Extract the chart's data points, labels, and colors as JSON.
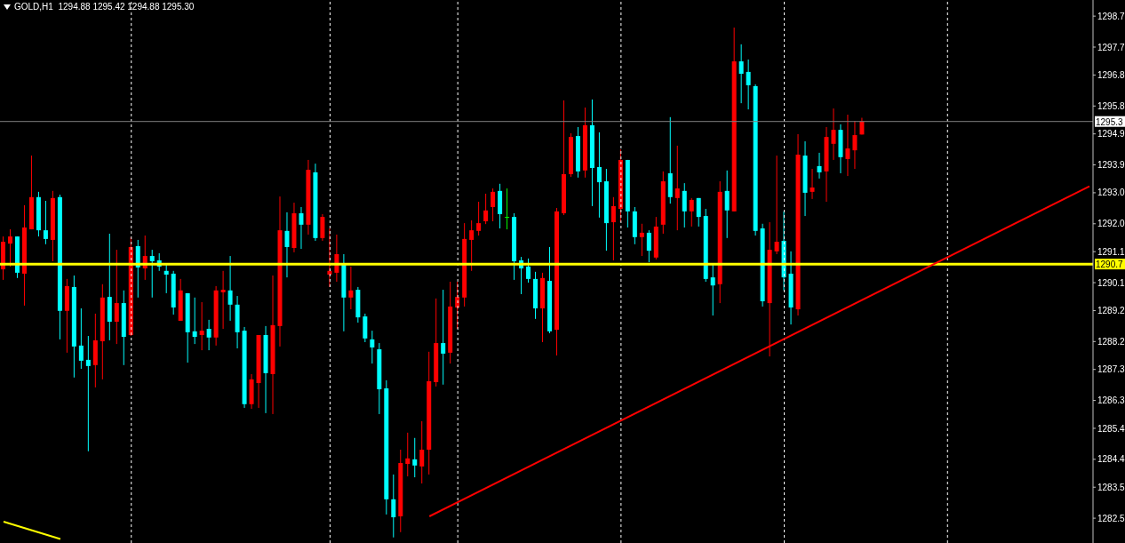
{
  "chart_data": {
    "type": "candlestick",
    "title": "GOLD,H1  1294.88 1295.42 1294.88 1295.30",
    "categories": [
      null,
      null,
      null,
      null,
      null,
      null,
      null,
      null,
      null,
      null,
      null,
      null,
      null,
      null,
      null,
      null,
      null,
      null,
      null,
      null,
      null,
      null,
      null,
      null,
      null,
      null,
      null,
      null,
      null,
      null,
      null,
      null,
      null,
      null,
      null,
      null,
      null,
      null,
      null,
      null,
      null,
      null,
      null,
      null,
      null,
      null,
      null,
      null,
      null,
      null,
      null,
      null,
      null,
      null,
      null,
      null,
      null,
      null,
      null,
      null,
      null,
      null,
      null,
      null,
      null,
      null,
      null,
      null,
      null,
      null,
      null,
      null,
      null,
      null,
      null,
      null,
      null,
      null,
      null,
      null,
      null,
      null,
      null,
      null,
      null,
      null,
      null,
      null,
      null,
      null,
      null,
      null,
      null,
      null,
      null,
      null,
      null,
      null,
      null,
      null,
      null,
      null,
      null,
      null,
      null,
      null,
      null,
      null,
      null,
      null,
      null,
      null,
      null,
      null,
      null,
      null,
      null,
      null,
      null,
      null,
      null,
      null,
      null,
      null,
      null,
      null,
      null,
      null,
      null,
      null,
      null,
      null,
      null,
      null,
      null,
      null,
      null,
      null,
      null,
      null,
      null,
      null,
      null,
      null,
      null,
      null,
      null,
      null,
      null,
      null,
      null,
      null,
      null,
      null
    ],
    "ohlc": [
      [
        1290.53,
        1291.59,
        1290.19,
        1291.42
      ],
      [
        1291.36,
        1291.82,
        1290.62,
        1291.59
      ],
      [
        1291.59,
        1291.59,
        1290.25,
        1290.42
      ],
      [
        1290.39,
        1292.6,
        1289.36,
        1291.88
      ],
      [
        1291.82,
        1294.2,
        1291.82,
        1292.86
      ],
      [
        1292.86,
        1293.03,
        1291.59,
        1291.79
      ],
      [
        1291.79,
        1292.74,
        1291.34,
        1291.51
      ],
      [
        1291.48,
        1293.06,
        1290.79,
        1292.83
      ],
      [
        1292.86,
        1292.94,
        1288.27,
        1289.19
      ],
      [
        1289.19,
        1290.22,
        1287.84,
        1289.99
      ],
      [
        1289.96,
        1290.33,
        1287.04,
        1288.04
      ],
      [
        1288.07,
        1289.27,
        1287.32,
        1287.58
      ],
      [
        1287.61,
        1288.38,
        1284.66,
        1287.41
      ],
      [
        1287.44,
        1289.1,
        1286.72,
        1288.24
      ],
      [
        1288.21,
        1290.05,
        1286.98,
        1289.62
      ],
      [
        1289.64,
        1291.68,
        1288.24,
        1288.84
      ],
      [
        1288.84,
        1291.16,
        1288.12,
        1289.44
      ],
      [
        1289.44,
        1289.85,
        1287.44,
        1288.35
      ],
      [
        1288.41,
        1291.57,
        1288.38,
        1291.25
      ],
      [
        1291.28,
        1291.48,
        1289.62,
        1290.59
      ],
      [
        1290.56,
        1291.62,
        1290.19,
        1290.96
      ],
      [
        1290.96,
        1291.16,
        1289.62,
        1290.79
      ],
      [
        1290.82,
        1291.05,
        1290.48,
        1290.62
      ],
      [
        1290.48,
        1290.7,
        1289.76,
        1290.36
      ],
      [
        1290.39,
        1290.48,
        1289.07,
        1289.3
      ],
      [
        1288.87,
        1290.22,
        1288.87,
        1289.85
      ],
      [
        1289.76,
        1289.76,
        1287.52,
        1288.5
      ],
      [
        1288.53,
        1289.62,
        1288.12,
        1288.35
      ],
      [
        1288.41,
        1289.47,
        1287.92,
        1288.55
      ],
      [
        1288.61,
        1288.9,
        1287.92,
        1288.33
      ],
      [
        1288.33,
        1289.99,
        1288.07,
        1289.85
      ],
      [
        1289.79,
        1290.48,
        1288.61,
        1289.87
      ],
      [
        1289.85,
        1290.96,
        1288.87,
        1289.39
      ],
      [
        1289.39,
        1289.67,
        1287.98,
        1288.5
      ],
      [
        1288.55,
        1288.67,
        1286.06,
        1286.18
      ],
      [
        1286.18,
        1287.15,
        1286.03,
        1286.98
      ],
      [
        1286.86,
        1288.41,
        1286.06,
        1288.41
      ],
      [
        1288.41,
        1288.7,
        1285.89,
        1287.18
      ],
      [
        1287.15,
        1290.33,
        1285.86,
        1288.73
      ],
      [
        1288.7,
        1292.88,
        1288.04,
        1291.79
      ],
      [
        1291.77,
        1292.37,
        1290.27,
        1291.25
      ],
      [
        1291.22,
        1292.68,
        1291.08,
        1292.34
      ],
      [
        1292.34,
        1292.54,
        1291.19,
        1291.97
      ],
      [
        1291.97,
        1294.06,
        1291.65,
        1293.74
      ],
      [
        1293.66,
        1293.94,
        1291.45,
        1291.54
      ],
      [
        1291.54,
        1292.31,
        1291.45,
        1292.22
      ],
      [
        1290.36,
        1291.85,
        1289.96,
        1290.48
      ],
      [
        1290.42,
        1291.65,
        1290.13,
        1291.02
      ],
      [
        1290.7,
        1291.02,
        1288.53,
        1289.62
      ],
      [
        1289.62,
        1290.62,
        1289.24,
        1289.85
      ],
      [
        1289.87,
        1289.96,
        1288.81,
        1288.98
      ],
      [
        1289.01,
        1289.1,
        1288.18,
        1288.3
      ],
      [
        1288.27,
        1288.55,
        1287.49,
        1288.01
      ],
      [
        1287.95,
        1288.15,
        1285.86,
        1286.66
      ],
      [
        1286.69,
        1286.95,
        1282.62,
        1283.11
      ],
      [
        1283.11,
        1283.91,
        1281.88,
        1282.53
      ],
      [
        1282.56,
        1284.71,
        1282.05,
        1284.28
      ],
      [
        1284.25,
        1285.26,
        1283.85,
        1284.43
      ],
      [
        1284.4,
        1285.09,
        1283.82,
        1284.2
      ],
      [
        1284.17,
        1285.63,
        1283.62,
        1284.71
      ],
      [
        1284.71,
        1287.87,
        1283.91,
        1286.92
      ],
      [
        1286.89,
        1289.59,
        1286.75,
        1288.15
      ],
      [
        1288.15,
        1289.87,
        1286.81,
        1287.81
      ],
      [
        1287.84,
        1290.13,
        1287.49,
        1289.33
      ],
      [
        1289.3,
        1290.13,
        1288.61,
        1289.64
      ],
      [
        1289.62,
        1292.02,
        1289.33,
        1291.51
      ],
      [
        1291.48,
        1292.11,
        1290.48,
        1291.79
      ],
      [
        1291.77,
        1292.71,
        1291.62,
        1292.02
      ],
      [
        1292.08,
        1292.97,
        1291.99,
        1292.43
      ],
      [
        1292.54,
        1293.14,
        1292.08,
        1293.03
      ],
      [
        1293.06,
        1293.29,
        1291.85,
        1292.31
      ],
      [
        1292.22,
        1293.14,
        1291.82,
        1292.22
      ],
      [
        1292.22,
        1292.34,
        1290.19,
        1290.79
      ],
      [
        1290.82,
        1290.93,
        1289.73,
        1290.56
      ],
      [
        1290.62,
        1290.88,
        1290.1,
        1290.22
      ],
      [
        1290.22,
        1290.45,
        1288.93,
        1289.27
      ],
      [
        1289.27,
        1290.42,
        1288.18,
        1290.25
      ],
      [
        1290.16,
        1291.25,
        1288.47,
        1288.53
      ],
      [
        1288.58,
        1292.51,
        1287.75,
        1292.4
      ],
      [
        1292.34,
        1295.98,
        1292.28,
        1293.6
      ],
      [
        1293.6,
        1294.92,
        1293.51,
        1294.8
      ],
      [
        1294.83,
        1295.12,
        1293.49,
        1293.69
      ],
      [
        1293.72,
        1295.75,
        1293.49,
        1295.18
      ],
      [
        1295.18,
        1296.01,
        1292.57,
        1293.8
      ],
      [
        1293.83,
        1294.95,
        1292.2,
        1293.34
      ],
      [
        1293.37,
        1293.77,
        1291.13,
        1292.02
      ],
      [
        1292.05,
        1292.86,
        1290.82,
        1292.57
      ],
      [
        1292.48,
        1294.4,
        1292.05,
        1294.06
      ],
      [
        1294.06,
        1294.06,
        1291.88,
        1292.4
      ],
      [
        1292.4,
        1292.54,
        1291.34,
        1291.57
      ],
      [
        1291.57,
        1292.0,
        1290.96,
        1291.71
      ],
      [
        1291.71,
        1291.79,
        1290.76,
        1291.13
      ],
      [
        1290.91,
        1292.22,
        1290.85,
        1291.91
      ],
      [
        1291.97,
        1293.69,
        1291.68,
        1293.37
      ],
      [
        1293.63,
        1295.44,
        1292.65,
        1292.86
      ],
      [
        1292.83,
        1294.52,
        1291.79,
        1293.14
      ],
      [
        1293.06,
        1293.31,
        1291.88,
        1292.4
      ],
      [
        1292.4,
        1292.83,
        1291.91,
        1292.77
      ],
      [
        1292.83,
        1292.83,
        1291.91,
        1292.22
      ],
      [
        1292.25,
        1292.48,
        1290.13,
        1290.22
      ],
      [
        1290.27,
        1290.68,
        1289.04,
        1290.01
      ],
      [
        1290.05,
        1293.37,
        1289.44,
        1293.03
      ],
      [
        1293.06,
        1293.72,
        1291.54,
        1292.43
      ],
      [
        1292.4,
        1298.33,
        1292.4,
        1297.24
      ],
      [
        1297.24,
        1297.79,
        1295.89,
        1296.84
      ],
      [
        1296.9,
        1297.3,
        1295.69,
        1296.47
      ],
      [
        1296.44,
        1296.5,
        1291.62,
        1291.77
      ],
      [
        1291.85,
        1292.0,
        1289.33,
        1289.5
      ],
      [
        1289.44,
        1292.05,
        1287.72,
        1291.16
      ],
      [
        1291.11,
        1294.2,
        1291.02,
        1291.42
      ],
      [
        1291.45,
        1292.4,
        1289.85,
        1290.27
      ],
      [
        1290.39,
        1291.11,
        1288.75,
        1289.3
      ],
      [
        1289.24,
        1294.89,
        1289.04,
        1294.23
      ],
      [
        1294.2,
        1294.66,
        1292.25,
        1293.0
      ],
      [
        1293.03,
        1293.77,
        1292.8,
        1293.17
      ],
      [
        1293.86,
        1294.29,
        1293.46,
        1293.66
      ],
      [
        1293.69,
        1295.12,
        1292.71,
        1294.8
      ],
      [
        1294.58,
        1295.72,
        1294.06,
        1295.03
      ],
      [
        1295.03,
        1295.21,
        1293.63,
        1294.15
      ],
      [
        1294.09,
        1295.52,
        1293.54,
        1294.43
      ],
      [
        1294.37,
        1295.32,
        1293.77,
        1294.86
      ],
      [
        1294.88,
        1295.42,
        1294.88,
        1295.3
      ],
      null,
      null,
      null,
      null,
      null,
      null,
      null,
      null,
      null,
      null,
      null,
      null,
      null,
      null,
      null,
      null,
      null,
      null,
      null,
      null,
      null,
      null,
      null,
      null,
      null,
      null,
      null,
      null,
      null,
      null,
      null,
      null
    ],
    "colors": [
      "#ff0000",
      "#ff0000",
      "#00ffff",
      "#ff0000",
      "#ff0000",
      "#00ffff",
      "#00ffff",
      "#ff0000",
      "#00ffff",
      "#ff0000",
      "#00ffff",
      "#00ffff",
      "#00ffff",
      "#ff0000",
      "#ff0000",
      "#00ffff",
      "#ff0000",
      "#00ffff",
      "#ff0000",
      "#00ffff",
      "#ff0000",
      "#00ffff",
      "#00ffff",
      "#00ffff",
      "#00ffff",
      "#ff0000",
      "#00ffff",
      "#00ffff",
      "#ff0000",
      "#00ffff",
      "#ff0000",
      "#ff0000",
      "#00ffff",
      "#00ffff",
      "#00ffff",
      "#ff0000",
      "#ff0000",
      "#00ffff",
      "#ff0000",
      "#ff0000",
      "#00ffff",
      "#ff0000",
      "#00ffff",
      "#ff0000",
      "#00ffff",
      "#ff0000",
      "#ff0000",
      "#ff0000",
      "#00ffff",
      "#ff0000",
      "#00ffff",
      "#00ffff",
      "#00ffff",
      "#00ffff",
      "#00ffff",
      "#00ffff",
      "#ff0000",
      "#ff0000",
      "#00ffff",
      "#ff0000",
      "#ff0000",
      "#ff0000",
      "#00ffff",
      "#ff0000",
      "#ff0000",
      "#ff0000",
      "#ff0000",
      "#ff0000",
      "#ff0000",
      "#ff0000",
      "#00ffff",
      "#00ff00",
      "#00ffff",
      "#00ffff",
      "#00ffff",
      "#00ffff",
      "#ff0000",
      "#00ffff",
      "#ff0000",
      "#ff0000",
      "#ff0000",
      "#00ffff",
      "#ff0000",
      "#00ffff",
      "#00ffff",
      "#00ffff",
      "#ff0000",
      "#ff0000",
      "#00ffff",
      "#00ffff",
      "#ff0000",
      "#00ffff",
      "#ff0000",
      "#ff0000",
      "#00ffff",
      "#ff0000",
      "#00ffff",
      "#ff0000",
      "#00ffff",
      "#00ffff",
      "#00ffff",
      "#ff0000",
      "#00ffff",
      "#ff0000",
      "#00ffff",
      "#00ffff",
      "#00ffff",
      "#00ffff",
      "#ff0000",
      "#ff0000",
      "#00ffff",
      "#00ffff",
      "#ff0000",
      "#00ffff",
      "#ff0000",
      "#00ffff",
      "#ff0000",
      "#ff0000",
      "#00ffff",
      "#ff0000",
      "#ff0000",
      "#ff0000",
      null,
      null,
      null,
      null,
      null,
      null,
      null,
      null,
      null,
      null,
      null,
      null,
      null,
      null,
      null,
      null,
      null,
      null,
      null,
      null,
      null,
      null,
      null,
      null,
      null,
      null,
      null,
      null,
      null,
      null,
      null,
      null
    ],
    "series": [
      {
        "type": "line",
        "color": "#ff0000",
        "values": [
          null,
          null,
          null,
          null,
          null,
          null,
          null,
          null,
          null,
          null,
          null,
          null,
          null,
          null,
          null,
          null,
          null,
          null,
          null,
          null,
          null,
          null,
          null,
          null,
          null,
          null,
          null,
          null,
          null,
          null,
          null,
          null,
          null,
          null,
          null,
          null,
          null,
          null,
          null,
          null,
          null,
          null,
          null,
          null,
          null,
          null,
          null,
          null,
          null,
          null,
          null,
          null,
          null,
          null,
          null,
          null,
          null,
          null,
          null,
          null,
          1282.56,
          null,
          null,
          null,
          null,
          null,
          null,
          null,
          null,
          null,
          null,
          null,
          null,
          null,
          null,
          null,
          null,
          null,
          null,
          null,
          null,
          null,
          null,
          null,
          null,
          null,
          null,
          null,
          null,
          null,
          null,
          null,
          null,
          null,
          null,
          null,
          null,
          null,
          null,
          null,
          null,
          null,
          null,
          null,
          null,
          null,
          null,
          null,
          null,
          null,
          null,
          null,
          null,
          null,
          null,
          null,
          null,
          null,
          null,
          null,
          null,
          null,
          null,
          null,
          null,
          null,
          null,
          null,
          null,
          null,
          null,
          null,
          null,
          null,
          null,
          null,
          null,
          null,
          null,
          null,
          null,
          null,
          null,
          null,
          null,
          null,
          null,
          null,
          null,
          null,
          null,
          null,
          null,
          1293.21
        ]
      },
      {
        "type": "line",
        "color": "#ffff00",
        "values": [
          1282.39,
          null,
          null,
          null,
          null,
          null,
          null,
          null,
          1281.83,
          null,
          null,
          null,
          null,
          null,
          null,
          null,
          null,
          null,
          null,
          null,
          null,
          null,
          null,
          null,
          null,
          null,
          null,
          null,
          null,
          null,
          null,
          null,
          null,
          null,
          null,
          null,
          null,
          null,
          null,
          null,
          null,
          null,
          null,
          null,
          null,
          null,
          null,
          null,
          null,
          null,
          null,
          null,
          null,
          null,
          null,
          null,
          null,
          null,
          null,
          null,
          null,
          null,
          null,
          null,
          null,
          null,
          null,
          null,
          null,
          null,
          null,
          null,
          null,
          null,
          null,
          null,
          null,
          null,
          null,
          null,
          null,
          null,
          null,
          null,
          null,
          null,
          null,
          null,
          null,
          null,
          null,
          null,
          null,
          null,
          null,
          null,
          null,
          null,
          null,
          null,
          null,
          null,
          null,
          null,
          null,
          null,
          null,
          null,
          null,
          null,
          null,
          null,
          null,
          null,
          null,
          null,
          null,
          null,
          null,
          null,
          null,
          null,
          null,
          null,
          null,
          null,
          null,
          null,
          null,
          null,
          null,
          null,
          null,
          null,
          null,
          null,
          null,
          null,
          null,
          null,
          null,
          null,
          null,
          null,
          null,
          null,
          null,
          null,
          null,
          null,
          null,
          null,
          null,
          null
        ]
      }
    ],
    "ylim": [
      1281.7,
      1299.22
    ],
    "yticks": [
      1282.5,
      1283.5,
      1284.4,
      1285.4,
      1286.3,
      1287.3,
      1288.2,
      1289.2,
      1290.1,
      1291.1,
      {
        "value": 1292.0,
        "label": "1292.0"
      },
      {
        "value": 1293.0,
        "label": "1293.0"
      },
      1293.9,
      1294.9,
      1295.8,
      1296.8,
      1297.7,
      1298.7
    ],
    "ref_lines": [
      {
        "axis": "y",
        "value": 1290.7,
        "label": "1290.7",
        "color": "#ffff00"
      },
      {
        "axis": "y",
        "value": 1295.3,
        "label": "1295.3",
        "color": "#808080"
      }
    ],
    "tick_labels": "y"
  }
}
